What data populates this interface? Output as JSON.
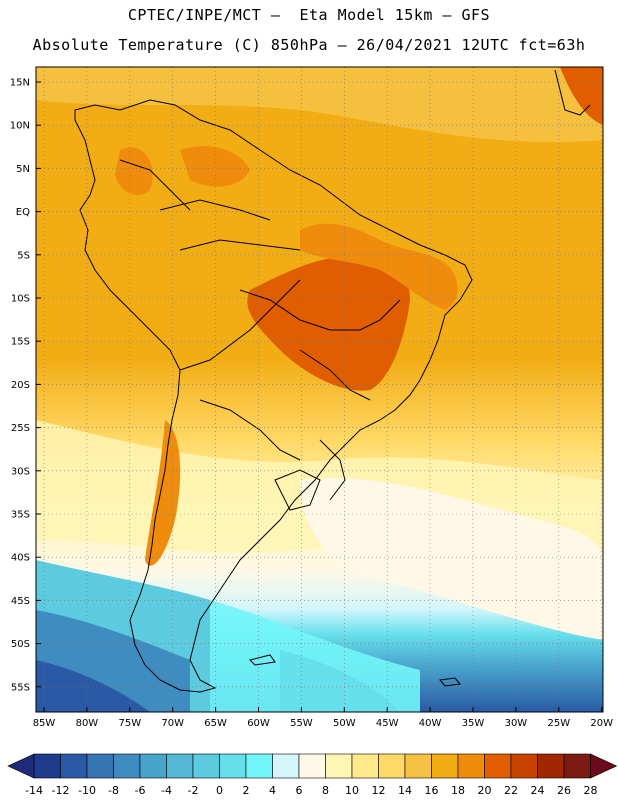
{
  "title_line1": "CPTEC/INPE/MCT –  Eta Model 15km – GFS",
  "title_line2": "Absolute Temperature (C) 850hPa – 26/04/2021 12UTC fct=63h",
  "map": {
    "lat_labels": [
      "15N",
      "10N",
      "5N",
      "EQ",
      "5S",
      "10S",
      "15S",
      "20S",
      "25S",
      "30S",
      "35S",
      "40S",
      "45S",
      "50S",
      "55S"
    ],
    "lon_labels": [
      "85W",
      "80W",
      "75W",
      "70W",
      "65W",
      "60W",
      "55W",
      "50W",
      "45W",
      "40W",
      "35W",
      "30W",
      "25W",
      "20W"
    ]
  },
  "colorbar": {
    "labels": [
      "-14",
      "-12",
      "-10",
      "-8",
      "-6",
      "-4",
      "-2",
      "0",
      "2",
      "4",
      "6",
      "8",
      "10",
      "12",
      "14",
      "16",
      "18",
      "20",
      "22",
      "24",
      "26",
      "28"
    ],
    "colors": [
      "#203a8c",
      "#2a5aa6",
      "#3674b4",
      "#3e8cc0",
      "#49a4cc",
      "#55b8d6",
      "#5ccbe0",
      "#66dfec",
      "#72f5fa",
      "#d4f6fb",
      "#fff8e6",
      "#fff5b4",
      "#ffe98a",
      "#ffd966",
      "#f6c244",
      "#f2ac14",
      "#f08c0c",
      "#e05e00",
      "#c84200",
      "#a02800",
      "#7a1a10"
    ],
    "under_color": "#1e2c7a",
    "over_color": "#6a0a1a"
  }
}
